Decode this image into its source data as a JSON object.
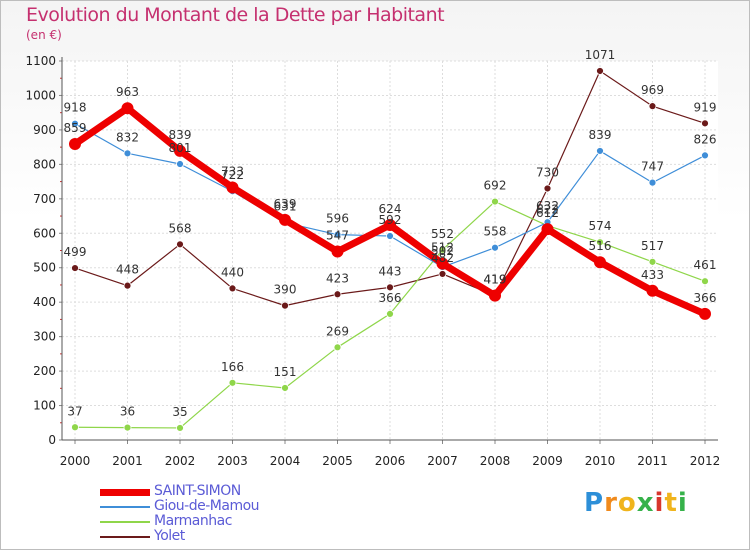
{
  "title": "Evolution du Montant de la Dette par Habitant",
  "unit": "(en €)",
  "logo": "Proxiti",
  "chart_data": {
    "type": "line",
    "title": "Evolution du Montant de la Dette par Habitant",
    "ylabel": "(en €)",
    "x": [
      "2000",
      "2001",
      "2002",
      "2003",
      "2004",
      "2005",
      "2006",
      "2007",
      "2008",
      "2009",
      "2010",
      "2011",
      "2012"
    ],
    "ylim": [
      0,
      1100
    ],
    "yticks": [
      0,
      100,
      200,
      300,
      400,
      500,
      600,
      700,
      800,
      900,
      1000,
      1100
    ],
    "grid": true,
    "legend_position": "bottom-left",
    "series": [
      {
        "name": "SAINT-SIMON",
        "color": "#ee0000",
        "values": [
          859,
          963,
          839,
          733,
          639,
          547,
          624,
          512,
          419,
          612,
          516,
          433,
          366
        ]
      },
      {
        "name": "Giou-de-Mamou",
        "color": "#3f8ed8",
        "values": [
          918,
          832,
          801,
          722,
          631,
          596,
          592,
          502,
          558,
          632,
          839,
          747,
          826
        ]
      },
      {
        "name": "Marmanhac",
        "color": "#8fd64a",
        "values": [
          37,
          36,
          35,
          166,
          151,
          269,
          366,
          552,
          692,
          622,
          574,
          517,
          461
        ]
      },
      {
        "name": "Yolet",
        "color": "#6b1a1a",
        "values": [
          499,
          448,
          568,
          440,
          390,
          423,
          443,
          482,
          419,
          730,
          1071,
          969,
          919
        ]
      }
    ]
  }
}
